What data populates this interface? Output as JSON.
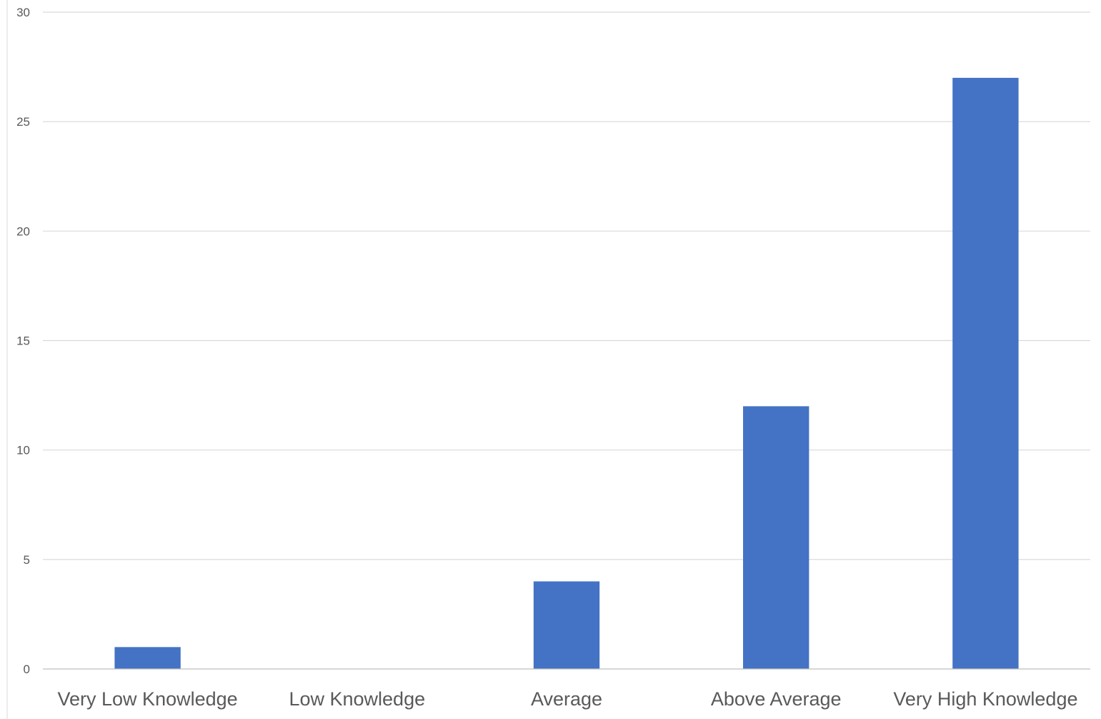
{
  "chart_data": {
    "type": "bar",
    "title": "",
    "xlabel": "",
    "ylabel": "",
    "categories": [
      "Very Low Knowledge",
      "Low Knowledge",
      "Average",
      "Above Average",
      "Very High Knowledge"
    ],
    "values": [
      1,
      0,
      4,
      12,
      27
    ],
    "ylim": [
      0,
      30
    ],
    "yticks": [
      0,
      5,
      10,
      15,
      20,
      25,
      30
    ],
    "grid": true,
    "legend": "none",
    "bar_color": "#4472c4"
  }
}
